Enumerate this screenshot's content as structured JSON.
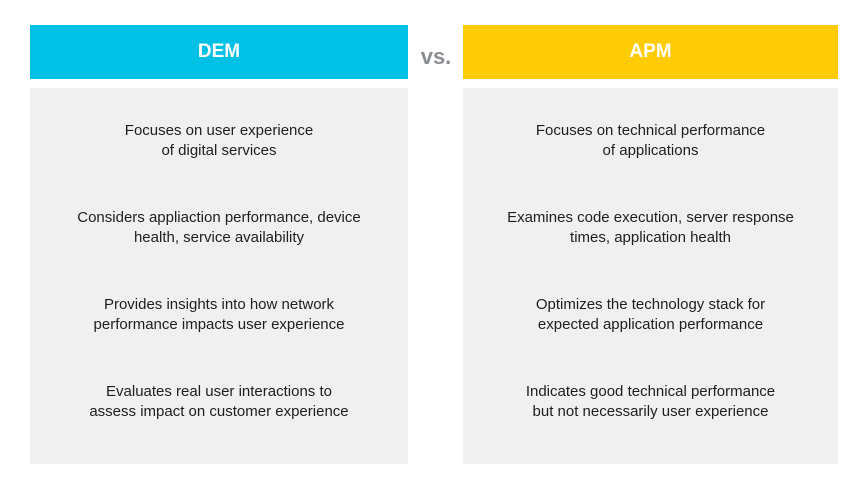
{
  "colors": {
    "dem": "#00c0e6",
    "apm": "#ffcb05",
    "panel": "#f0f0f1",
    "vs": "#8a8d92"
  },
  "vs": "vs.",
  "columns": [
    {
      "title": "DEM",
      "items": [
        [
          "Focuses on user experience",
          "of digital services"
        ],
        [
          "Considers appliaction performance, device",
          "health, service availability"
        ],
        [
          "Provides insights into how network",
          "performance impacts user experience"
        ],
        [
          "Evaluates real user interactions to",
          "assess impact on customer experience"
        ]
      ]
    },
    {
      "title": "APM",
      "items": [
        [
          "Focuses on technical performance",
          "of applications"
        ],
        [
          "Examines code execution, server response",
          "times, application health"
        ],
        [
          "Optimizes the technology stack for",
          "expected application performance"
        ],
        [
          "Indicates good technical performance",
          "but not necessarily user experience"
        ]
      ]
    }
  ]
}
